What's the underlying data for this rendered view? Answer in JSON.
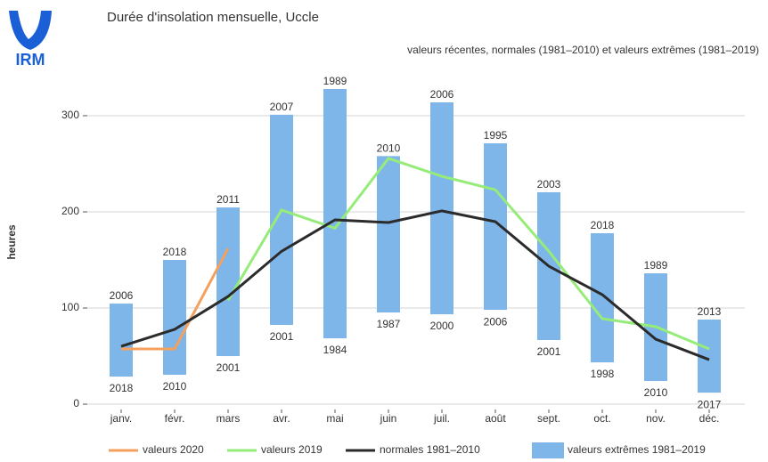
{
  "logo": "IRM",
  "chart_data": {
    "type": "range-bar-line",
    "title": "Durée d'insolation mensuelle, Uccle",
    "subtitle": "valeurs récentes, normales (1981–2010) et valeurs extrêmes (1981–2019)",
    "y_label": "heures",
    "categories": [
      "janv.",
      "févr.",
      "mars",
      "avr.",
      "mai",
      "juin",
      "juil.",
      "août",
      "sept.",
      "oct.",
      "nov.",
      "déc."
    ],
    "ylim": [
      -5.5,
      337
    ],
    "yticks": [
      0,
      100,
      200,
      300
    ],
    "grid": true,
    "legend": "bottom",
    "range": {
      "name": "valeurs extrêmes 1981–2019",
      "color": "#7eb6ea",
      "min": [
        28.7,
        30.6,
        50,
        82.4,
        68.5,
        95.4,
        93.5,
        98.1,
        66.7,
        43.5,
        24.1,
        12
      ],
      "max": [
        104.6,
        150,
        204.6,
        301,
        327.8,
        258,
        313.9,
        271.3,
        220.4,
        177.8,
        136.1,
        88
      ],
      "min_years": [
        "2018",
        "2010",
        "2001",
        "2001",
        "1984",
        "1987",
        "2000",
        "2006",
        "2001",
        "1998",
        "2010",
        "2017"
      ],
      "max_years": [
        "2006",
        "2018",
        "2011",
        "2007",
        "1989",
        "2010",
        "2006",
        "1995",
        "2003",
        "2018",
        "1989",
        "2013"
      ]
    },
    "series": [
      {
        "name": "valeurs 2020",
        "color": "#f4a05e",
        "values": [
          57.4,
          57.4,
          162,
          null,
          null,
          null,
          null,
          null,
          null,
          null,
          null,
          null
        ]
      },
      {
        "name": "valeurs 2019",
        "color": "#96ec78",
        "values": [
          null,
          null,
          108,
          201.9,
          183,
          255.6,
          237,
          223,
          159,
          88.9,
          80.6,
          57.4
        ]
      },
      {
        "name": "normales 1981–2010",
        "color": "#2b2b2b",
        "values": [
          60.2,
          77.8,
          112,
          159,
          191.7,
          188.9,
          201,
          189.8,
          143.5,
          113.9,
          67.6,
          46.3
        ]
      }
    ]
  }
}
